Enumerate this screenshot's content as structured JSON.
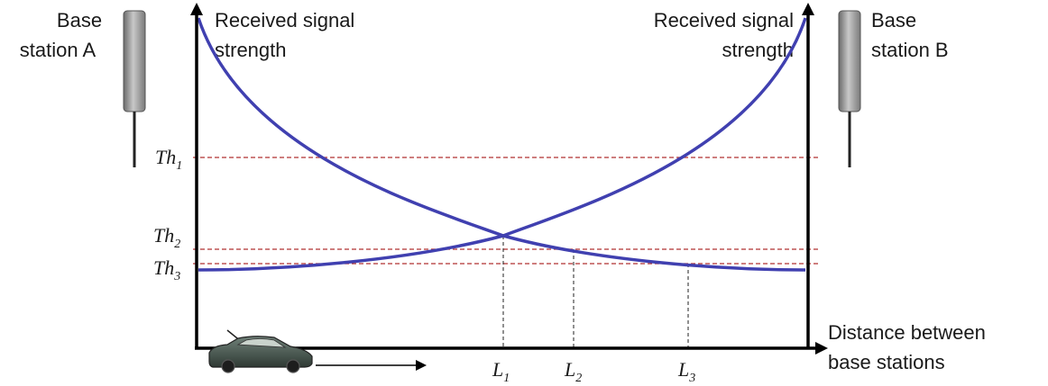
{
  "base_station_a": {
    "line1": "Base",
    "line2": "station A"
  },
  "base_station_b": {
    "line1": "Base",
    "line2": "station B"
  },
  "left_axis_label": {
    "line1": "Received signal",
    "line2": "strength"
  },
  "right_axis_label": {
    "line1": "Received signal",
    "line2": "strength"
  },
  "x_axis_label": {
    "line1": "Distance between",
    "line2": "base stations"
  },
  "thresholds": [
    {
      "base": "Th",
      "sub": "1"
    },
    {
      "base": "Th",
      "sub": "2"
    },
    {
      "base": "Th",
      "sub": "3"
    }
  ],
  "locations": [
    {
      "base": "L",
      "sub": "1"
    },
    {
      "base": "L",
      "sub": "2"
    },
    {
      "base": "L",
      "sub": "3"
    }
  ],
  "colors": {
    "signal_curve": "#4040b0",
    "threshold_line": "#b03030",
    "axis": "#000000",
    "antenna": "#8a8a8a",
    "car": "#44544c"
  }
}
